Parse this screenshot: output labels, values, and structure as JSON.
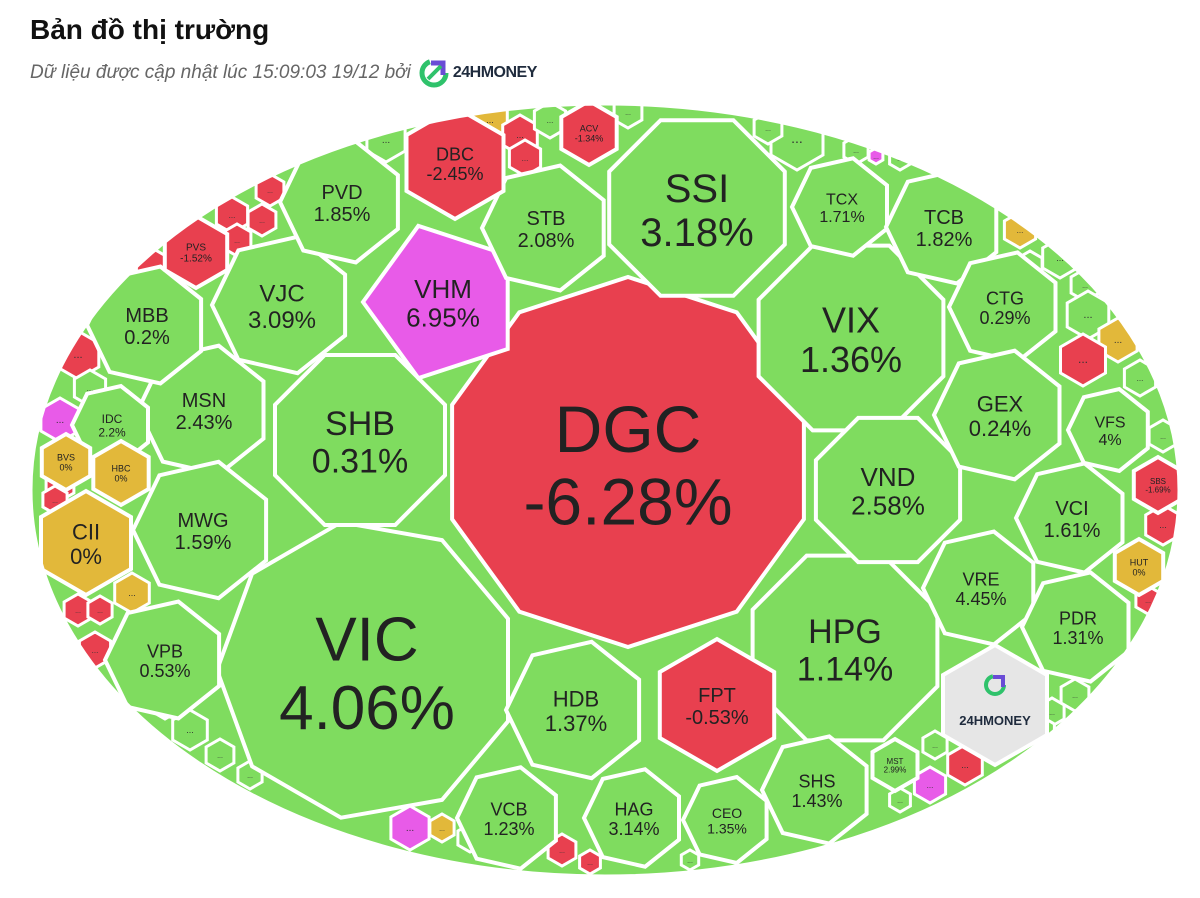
{
  "header": {
    "title": "Bản đồ thị trường",
    "subtitle": "Dữ liệu được cập nhật lúc 15:09:03 19/12 bởi",
    "brand": "24HMONEY"
  },
  "colors": {
    "up": "#7fdc5f",
    "down": "#e8404f",
    "flat": "#e2b83a",
    "ceiling": "#e85be8",
    "logo_bg": "#e6e6e6"
  },
  "icons": {
    "brand": "24hmoney-logo-icon"
  },
  "chart_data": {
    "type": "treemap",
    "more_label": "...",
    "watermark": "24HMONEY",
    "cells": [
      {
        "ticker": "DGC",
        "change": "-6.28%",
        "status": "down"
      },
      {
        "ticker": "VIC",
        "change": "4.06%",
        "status": "up"
      },
      {
        "ticker": "SSI",
        "change": "3.18%",
        "status": "up"
      },
      {
        "ticker": "VIX",
        "change": "1.36%",
        "status": "up"
      },
      {
        "ticker": "HPG",
        "change": "1.14%",
        "status": "up"
      },
      {
        "ticker": "SHB",
        "change": "0.31%",
        "status": "up"
      },
      {
        "ticker": "VHM",
        "change": "6.95%",
        "status": "ceiling"
      },
      {
        "ticker": "VND",
        "change": "2.58%",
        "status": "up"
      },
      {
        "ticker": "HDB",
        "change": "1.37%",
        "status": "up"
      },
      {
        "ticker": "FPT",
        "change": "-0.53%",
        "status": "down"
      },
      {
        "ticker": "STB",
        "change": "2.08%",
        "status": "up"
      },
      {
        "ticker": "VJC",
        "change": "3.09%",
        "status": "up"
      },
      {
        "ticker": "MSN",
        "change": "2.43%",
        "status": "up"
      },
      {
        "ticker": "MWG",
        "change": "1.59%",
        "status": "up"
      },
      {
        "ticker": "MBB",
        "change": "0.2%",
        "status": "up"
      },
      {
        "ticker": "PVD",
        "change": "1.85%",
        "status": "up"
      },
      {
        "ticker": "DBC",
        "change": "-2.45%",
        "status": "down"
      },
      {
        "ticker": "TCX",
        "change": "1.71%",
        "status": "up"
      },
      {
        "ticker": "TCB",
        "change": "1.82%",
        "status": "up"
      },
      {
        "ticker": "CTG",
        "change": "0.29%",
        "status": "up"
      },
      {
        "ticker": "GEX",
        "change": "0.24%",
        "status": "up"
      },
      {
        "ticker": "VFS",
        "change": "4%",
        "status": "up"
      },
      {
        "ticker": "VCI",
        "change": "1.61%",
        "status": "up"
      },
      {
        "ticker": "VRE",
        "change": "4.45%",
        "status": "up"
      },
      {
        "ticker": "PDR",
        "change": "1.31%",
        "status": "up"
      },
      {
        "ticker": "SHS",
        "change": "1.43%",
        "status": "up"
      },
      {
        "ticker": "CEO",
        "change": "1.35%",
        "status": "up"
      },
      {
        "ticker": "HAG",
        "change": "3.14%",
        "status": "up"
      },
      {
        "ticker": "VCB",
        "change": "1.23%",
        "status": "up"
      },
      {
        "ticker": "VPB",
        "change": "0.53%",
        "status": "up"
      },
      {
        "ticker": "CII",
        "change": "0%",
        "status": "flat"
      },
      {
        "ticker": "IDC",
        "change": "2.2%",
        "status": "up"
      },
      {
        "ticker": "BVS",
        "change": "0%",
        "status": "flat"
      },
      {
        "ticker": "HBC",
        "change": "0%",
        "status": "flat"
      },
      {
        "ticker": "PVS",
        "change": "-1.52%",
        "status": "down"
      },
      {
        "ticker": "ACV",
        "change": "-1.34%",
        "status": "down"
      },
      {
        "ticker": "SBS",
        "change": "-1.69%",
        "status": "down"
      },
      {
        "ticker": "HUT",
        "change": "0%",
        "status": "flat"
      },
      {
        "ticker": "MST",
        "change": "2.99%",
        "status": "up"
      }
    ]
  }
}
